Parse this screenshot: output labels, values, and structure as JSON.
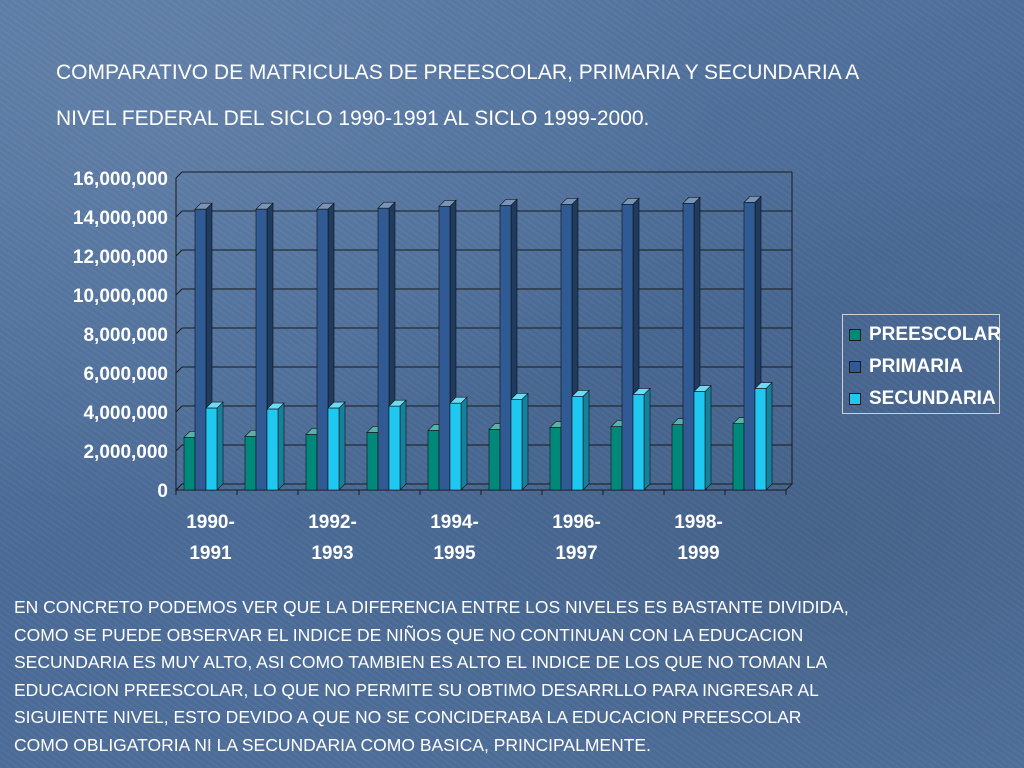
{
  "title": {
    "line1": "COMPARATIVO DE MATRICULAS DE PREESCOLAR, PRIMARIA Y SECUNDARIA A",
    "line2": "NIVEL FEDERAL DEL SICLO 1990-1991 AL SICLO 1999-2000."
  },
  "chart_data": {
    "type": "bar",
    "categories": [
      "1990-1991",
      "",
      "1992-1993",
      "",
      "1994-1995",
      "",
      "1996-1997",
      "",
      "1998-1999",
      ""
    ],
    "category_label_lines": [
      [
        "1990-",
        "1991"
      ],
      [
        "",
        ""
      ],
      [
        "1992-",
        "1993"
      ],
      [
        "",
        ""
      ],
      [
        "1994-",
        "1995"
      ],
      [
        "",
        ""
      ],
      [
        "1996-",
        "1997"
      ],
      [
        "",
        ""
      ],
      [
        "1998-",
        "1999"
      ],
      [
        "",
        ""
      ]
    ],
    "series": [
      {
        "name": "PREESCOLAR",
        "color": "#00897b",
        "values": [
          2700000,
          2750000,
          2850000,
          2950000,
          3050000,
          3100000,
          3200000,
          3250000,
          3350000,
          3400000
        ]
      },
      {
        "name": "PRIMARIA",
        "color": "#2f5a94",
        "values": [
          14400000,
          14400000,
          14400000,
          14450000,
          14550000,
          14600000,
          14650000,
          14650000,
          14700000,
          14750000
        ]
      },
      {
        "name": "SECUNDARIA",
        "color": "#1ec8f0",
        "values": [
          4200000,
          4150000,
          4200000,
          4300000,
          4450000,
          4650000,
          4800000,
          4900000,
          5050000,
          5200000
        ]
      }
    ],
    "ylim": [
      0,
      16000000
    ],
    "yticks": [
      "0",
      "2,000,000",
      "4,000,000",
      "6,000,000",
      "8,000,000",
      "10,000,000",
      "12,000,000",
      "14,000,000",
      "16,000,000"
    ],
    "grid": true,
    "legend_position": "right"
  },
  "legend": {
    "items": [
      {
        "label": "PREESCOLAR",
        "color": "#00897b"
      },
      {
        "label": "PRIMARIA",
        "color": "#2f5a94"
      },
      {
        "label": "SECUNDARIA",
        "color": "#1ec8f0"
      }
    ]
  },
  "body": {
    "lines": [
      "EN CONCRETO PODEMOS VER QUE LA DIFERENCIA ENTRE LOS NIVELES ES BASTANTE DIVIDIDA,",
      "COMO SE PUEDE OBSERVAR EL INDICE DE NIÑOS QUE NO CONTINUAN CON LA EDUCACION",
      "SECUNDARIA ES MUY ALTO, ASI COMO TAMBIEN ES ALTO EL INDICE DE LOS QUE NO TOMAN LA",
      "EDUCACION PREESCOLAR, LO QUE NO PERMITE SU OBTIMO DESARRLLO PARA INGRESAR AL",
      "SIGUIENTE NIVEL, ESTO DEVIDO A QUE NO SE CONCIDERABA LA EDUCACION PREESCOLAR",
      "COMO OBLIGATORIA NI LA SECUNDARIA COMO BASICA, PRINCIPALMENTE."
    ]
  }
}
